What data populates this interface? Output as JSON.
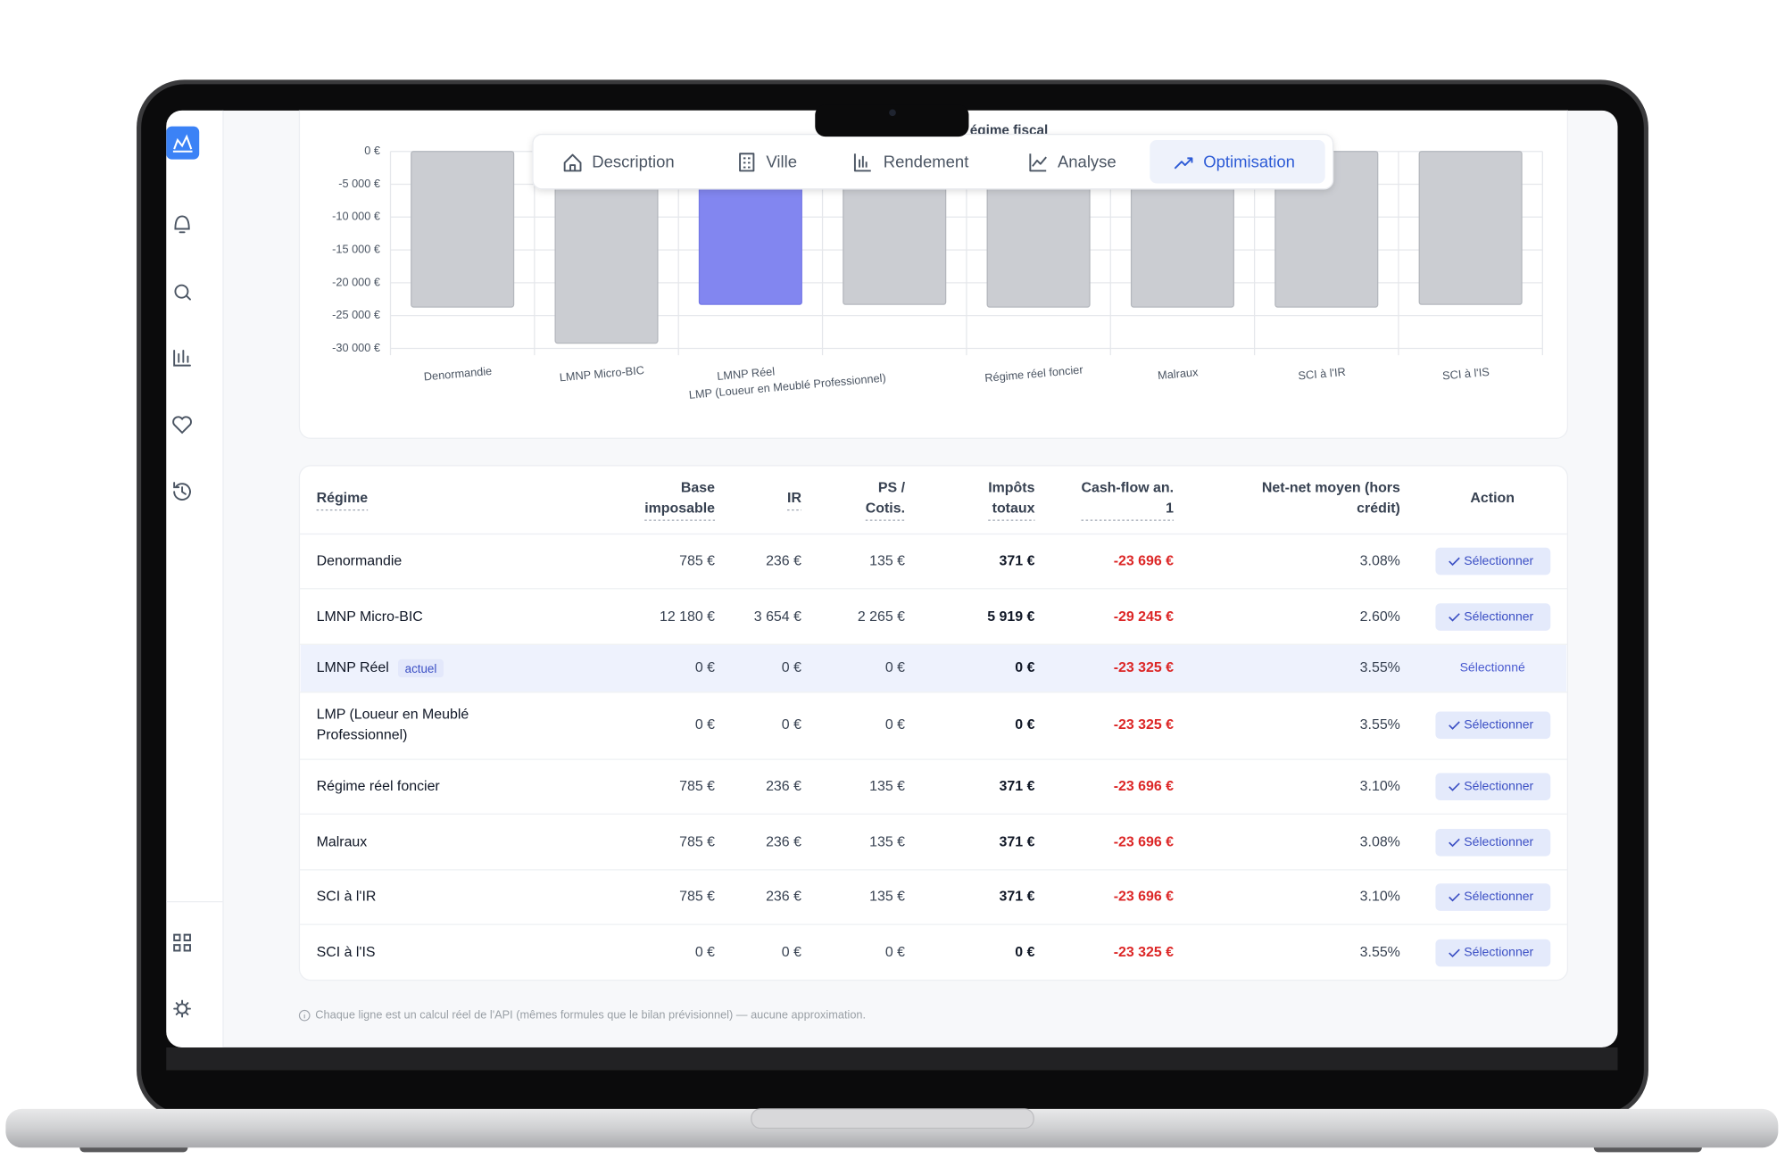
{
  "tabs": [
    "Description",
    "Ville",
    "Rendement",
    "Analyse",
    "Optimisation"
  ],
  "chart_data": {
    "type": "bar",
    "title": "égime fiscal",
    "categories": [
      "Denormandie",
      "LMNP Micro-BIC",
      "LMNP Réel",
      "LMP (Loueur en Meublé Professionnel)",
      "Régime réel foncier",
      "Malraux",
      "SCI à l'IR",
      "SCI à l'IS"
    ],
    "values": [
      -23700,
      -29200,
      -23300,
      -23300,
      -23700,
      -23700,
      -23700,
      -23300
    ],
    "colors": [
      "#cbcdd2",
      "#cbcdd2",
      "#8286f0",
      "#cbcdd2",
      "#cbcdd2",
      "#cbcdd2",
      "#cbcdd2",
      "#cbcdd2"
    ],
    "ylim": [
      -30000,
      0
    ],
    "yticks": [
      {
        "value": 0,
        "label": "0 €"
      },
      {
        "value": -5000,
        "label": "-5 000 €"
      },
      {
        "value": -10000,
        "label": "-10 000 €"
      },
      {
        "value": -15000,
        "label": "-15 000 €"
      },
      {
        "value": -20000,
        "label": "-20 000 €"
      },
      {
        "value": -25000,
        "label": "-25 000 €"
      },
      {
        "value": -30000,
        "label": "-30 000 €"
      }
    ],
    "grid": true
  },
  "table": {
    "headers": [
      [
        "Régime"
      ],
      [
        "Base",
        "imposable"
      ],
      [
        "IR"
      ],
      [
        "PS /",
        "Cotis."
      ],
      [
        "Impôts",
        "totaux"
      ],
      [
        "Cash-flow an.",
        "1"
      ],
      [
        "Net-net moyen (hors",
        "crédit)"
      ],
      [
        "Action"
      ]
    ],
    "rows": [
      {
        "cells": [
          [
            "Denormandie"
          ],
          "785 €",
          "236 €",
          "135 €",
          "371 €",
          "-23 696 €",
          "3.08%",
          "Sélectionner"
        ]
      },
      {
        "cells": [
          [
            "LMNP Micro-BIC"
          ],
          "12 180 €",
          "3 654 €",
          "2 265 €",
          "5 919 €",
          "-29 245 €",
          "2.60%",
          "Sélectionner"
        ]
      },
      {
        "cells": [
          [
            "LMNP Réel"
          ],
          "0 €",
          "0 €",
          "0 €",
          "0 €",
          "-23 325 €",
          "3.55%",
          "Sélectionné"
        ],
        "badge": "actuel",
        "current": true
      },
      {
        "cells": [
          [
            "LMP (Loueur en Meublé",
            "Professionnel)"
          ],
          "0 €",
          "0 €",
          "0 €",
          "0 €",
          "-23 325 €",
          "3.55%",
          "Sélectionner"
        ]
      },
      {
        "cells": [
          [
            "Régime réel foncier"
          ],
          "785 €",
          "236 €",
          "135 €",
          "371 €",
          "-23 696 €",
          "3.10%",
          "Sélectionner"
        ]
      },
      {
        "cells": [
          [
            "Malraux"
          ],
          "785 €",
          "236 €",
          "135 €",
          "371 €",
          "-23 696 €",
          "3.08%",
          "Sélectionner"
        ]
      },
      {
        "cells": [
          [
            "SCI à l'IR"
          ],
          "785 €",
          "236 €",
          "135 €",
          "371 €",
          "-23 696 €",
          "3.10%",
          "Sélectionner"
        ]
      },
      {
        "cells": [
          [
            "SCI à l'IS"
          ],
          "0 €",
          "0 €",
          "0 €",
          "0 €",
          "-23 325 €",
          "3.55%",
          "Sélectionner"
        ]
      }
    ]
  },
  "footnote": "Chaque ligne est un calcul réel de l'API (mêmes formules que le bilan prévisionnel) — aucune approximation."
}
